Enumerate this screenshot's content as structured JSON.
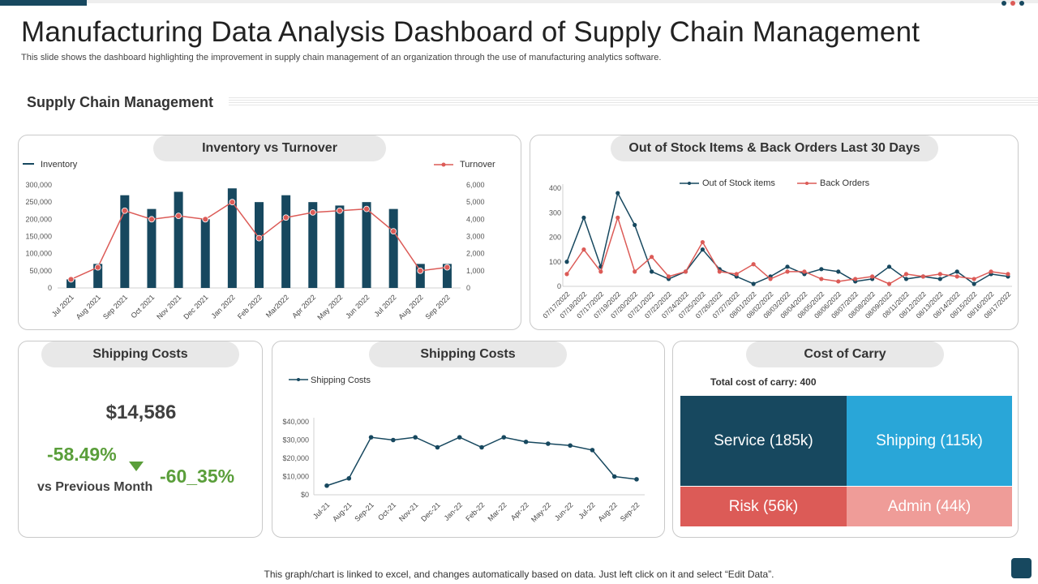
{
  "header": {
    "title": "Manufacturing Data Analysis Dashboard of Supply Chain Management",
    "subtitle": "This slide shows the dashboard highlighting the improvement in supply chain management of an organization  through the use of manufacturing analytics software.",
    "section_title": "Supply Chain Management"
  },
  "colors": {
    "navy": "#17485f",
    "red": "#dc5b57",
    "green": "#5a9e3a",
    "light_blue": "#29a6d8",
    "light_red": "#ef9c98"
  },
  "panels": {
    "inventory_title": "Inventory vs Turnover",
    "stock_title": "Out of Stock Items & Back Orders Last 30 Days",
    "ship_kpi_title": "Shipping Costs",
    "ship_chart_title": "Shipping Costs",
    "carry_title": "Cost of Carry"
  },
  "shipping_kpi": {
    "value": "$14,586",
    "pct_primary": "-58.49%",
    "pct_secondary": "-60_35%",
    "label": "vs Previous Month"
  },
  "cost_of_carry": {
    "total_label": "Total cost of carry: 400",
    "tiles": {
      "service": "Service (185k)",
      "shipping": "Shipping (115k)",
      "risk": "Risk (56k)",
      "admin": "Admin (44k)"
    }
  },
  "footer": {
    "note": "This graph/chart is linked to excel,  and changes automatically based on data. Just left click on it and select “Edit Data”."
  },
  "chart_data": [
    {
      "type": "bar",
      "title": "Inventory vs Turnover",
      "categories": [
        "Jul 2021",
        "Aug 2021",
        "Sep 2021",
        "Oct 2021",
        "Nov 2021",
        "Dec 2021",
        "Jan 2022",
        "Feb 2022",
        "Mar2022",
        "Apr 2022",
        "May 2022",
        "Jun 2022",
        "Jul 2022",
        "Aug 2022",
        "Sep 2022"
      ],
      "series": [
        {
          "name": "Inventory",
          "kind": "bar",
          "axis": "left",
          "values": [
            25000,
            70000,
            270000,
            230000,
            280000,
            200000,
            290000,
            250000,
            270000,
            250000,
            240000,
            250000,
            230000,
            70000,
            70000
          ]
        },
        {
          "name": "Turnover",
          "kind": "line",
          "axis": "right",
          "values": [
            500,
            1200,
            4500,
            4000,
            4200,
            4000,
            5000,
            2900,
            4100,
            4400,
            4500,
            4600,
            3300,
            1000,
            1200
          ]
        }
      ],
      "y_left": {
        "min": 0,
        "max": 300000,
        "ticks": [
          "0",
          "50,000",
          "100,000",
          "150,000",
          "200,000",
          "250,000",
          "300,000"
        ]
      },
      "y_right": {
        "min": 0,
        "max": 6000,
        "ticks": [
          "0",
          "1,000",
          "2,000",
          "3,000",
          "4,000",
          "5,000",
          "6,000"
        ]
      },
      "legend": [
        "Inventory",
        "Turnover"
      ]
    },
    {
      "type": "line",
      "title": "Out of Stock Items & Back Orders Last 30 Days",
      "categories": [
        "07/17/2022",
        "07/18/2022",
        "07/17/2022",
        "07/19/2022",
        "07/20/2022",
        "07/21/2022",
        "07/22/2022",
        "07/24/2022",
        "07/25/2022",
        "07/26/2022",
        "07/27/2022",
        "08/01/2022",
        "08/02/2022",
        "08/03/2022",
        "08/04/2022",
        "08/05/2022",
        "08/06/2022",
        "08/07/2022",
        "08/08/2022",
        "08/09/2022",
        "08/11/2022",
        "08/12/2022",
        "08/13/2022",
        "08/14/2022",
        "08/15/2022",
        "08/16/2022",
        "08/17/2022"
      ],
      "series": [
        {
          "name": "Out of Stock items",
          "values": [
            100,
            280,
            80,
            380,
            250,
            60,
            30,
            60,
            150,
            70,
            40,
            10,
            40,
            80,
            50,
            70,
            60,
            20,
            30,
            80,
            30,
            40,
            30,
            60,
            10,
            50,
            40
          ]
        },
        {
          "name": "Back Orders",
          "values": [
            50,
            150,
            60,
            280,
            60,
            120,
            40,
            60,
            180,
            60,
            50,
            90,
            30,
            60,
            60,
            30,
            20,
            30,
            40,
            10,
            50,
            40,
            50,
            40,
            30,
            60,
            50
          ]
        }
      ],
      "y": {
        "min": 0,
        "max": 400,
        "ticks": [
          "0",
          "100",
          "200",
          "300",
          "400"
        ]
      },
      "legend": [
        "Out of Stock items",
        "Back Orders"
      ]
    },
    {
      "type": "line",
      "title": "Shipping Costs",
      "categories": [
        "Jul-21",
        "Aug-21",
        "Sep-21",
        "Oct-21",
        "Nov-21",
        "Dec-21",
        "Jan-22",
        "Feb-22",
        "Mar-22",
        "Apr-22",
        "May-22",
        "Jun-22",
        "Jul-22",
        "Aug-22",
        "Sep-22"
      ],
      "series": [
        {
          "name": "Shipping Costs",
          "values": [
            5000,
            9000,
            31500,
            30000,
            31500,
            26000,
            31500,
            26000,
            31500,
            29000,
            28000,
            27000,
            24500,
            10000,
            8500
          ]
        }
      ],
      "y": {
        "min": 0,
        "max": 40000,
        "ticks": [
          "$0",
          "$10,000",
          "$20,000",
          "$30,000",
          "$40,000"
        ]
      },
      "legend": [
        "Shipping Costs"
      ]
    }
  ]
}
